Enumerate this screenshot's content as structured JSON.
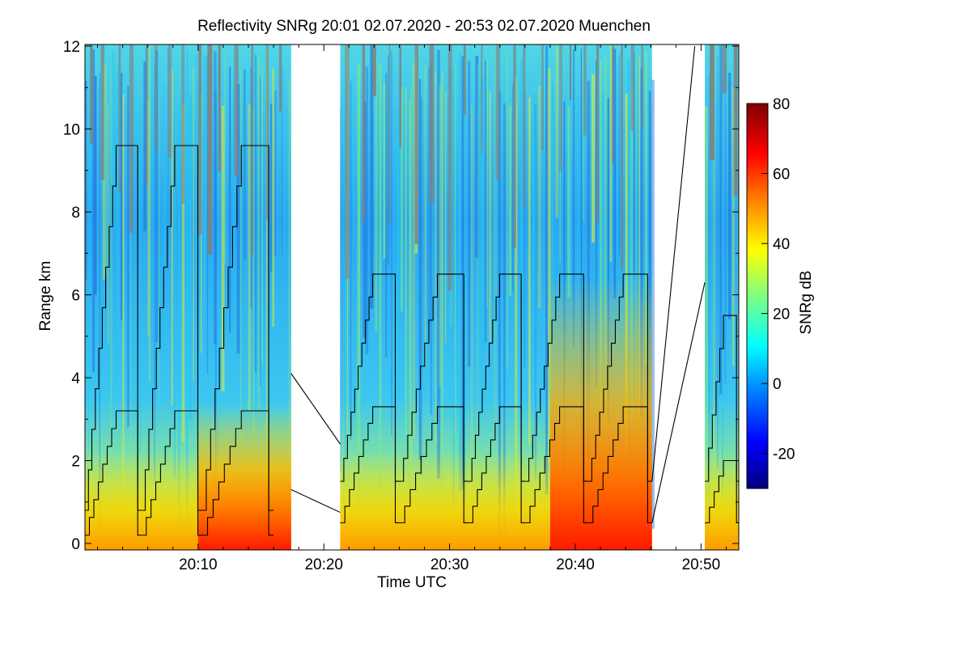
{
  "chart_data": {
    "type": "heatmap",
    "title": "Reflectivity SNRg   20:01 02.07.2020 - 20:53 02.07.2020 Muenchen",
    "xlabel": "Time UTC",
    "ylabel": "Range km",
    "xlim_minutes_utc": [
      "20:01",
      "20:53"
    ],
    "ylim": [
      0,
      12
    ],
    "x_ticks": [
      "20:10",
      "20:20",
      "20:30",
      "20:40",
      "20:50"
    ],
    "y_ticks": [
      "0",
      "2",
      "4",
      "6",
      "8",
      "10",
      "12"
    ],
    "colorbar": {
      "label": "SNRg dB",
      "range": [
        -30,
        80
      ],
      "ticks": [
        "-20",
        "0",
        "20",
        "40",
        "60",
        "80"
      ],
      "colormap": [
        "#00007f",
        "#0000ff",
        "#007fff",
        "#00ffff",
        "#7fff7f",
        "#ffff00",
        "#ff7f00",
        "#ff0000",
        "#7f0000"
      ]
    },
    "data_segments": [
      {
        "start": "20:01",
        "end": "20:17.4"
      },
      {
        "start": "20:21.3",
        "end": "20:46.1"
      },
      {
        "start": "20:50.3",
        "end": "20:53"
      }
    ],
    "missing_value_color": "#808080",
    "overlay_lines_color": "#000000"
  }
}
